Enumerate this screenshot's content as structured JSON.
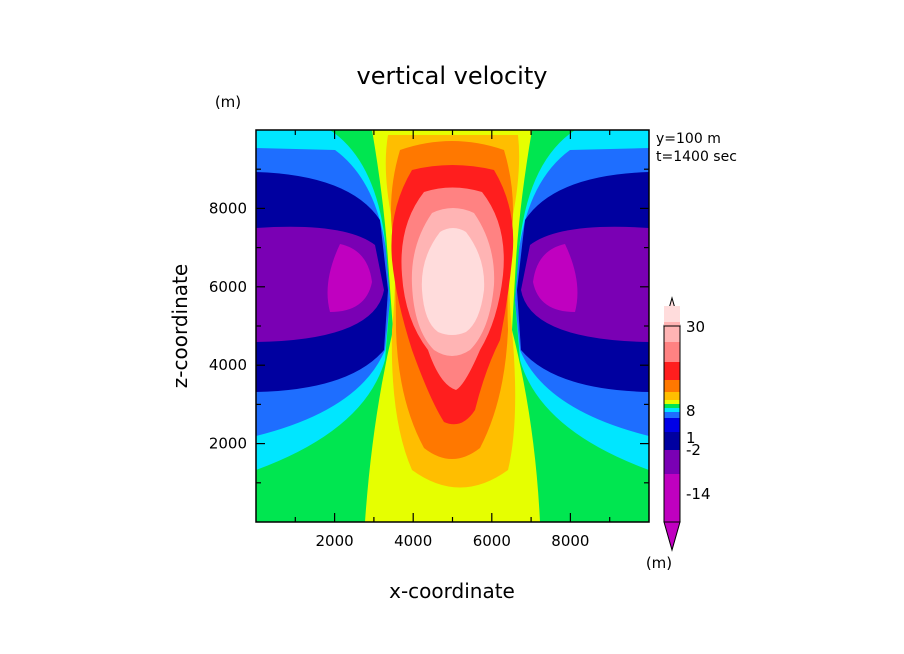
{
  "chart_data": {
    "type": "heatmap",
    "title": "vertical velocity",
    "xlabel": "x-coordinate",
    "ylabel": "z-coordinate",
    "xunit": "(m)",
    "yunit": "(m)",
    "annotations": [
      "y=100 m",
      "t=1400 sec"
    ],
    "xlim": [
      0,
      10000
    ],
    "ylim": [
      0,
      10000
    ],
    "xticks": [
      2000,
      4000,
      6000,
      8000
    ],
    "yticks": [
      2000,
      4000,
      6000,
      8000
    ],
    "colorbar": {
      "unit": "(m)",
      "ticks": [
        "30",
        "8",
        "1",
        "-2",
        "-14"
      ],
      "levels": [
        {
          "color": "#c000c0"
        },
        {
          "color": "#c000c0"
        },
        {
          "color": "#7a00b4"
        },
        {
          "color": "#7a00b4"
        },
        {
          "color": "#0000a0"
        },
        {
          "color": "#0000e6"
        },
        {
          "color": "#1e6eff"
        },
        {
          "color": "#00e6ff"
        },
        {
          "color": "#00e650"
        },
        {
          "color": "#e6ff00"
        },
        {
          "color": "#ffbe00"
        },
        {
          "color": "#ff7800"
        },
        {
          "color": "#ff1e1e"
        },
        {
          "color": "#ff8282"
        },
        {
          "color": "#ffb4b4"
        },
        {
          "color": "#ffdcdc"
        }
      ]
    },
    "field": {
      "background": "#00e650",
      "updraft_center_x": 5000,
      "updraft_core_z": 6000,
      "max_updraft": 30,
      "min_downdraft": -14
    }
  }
}
